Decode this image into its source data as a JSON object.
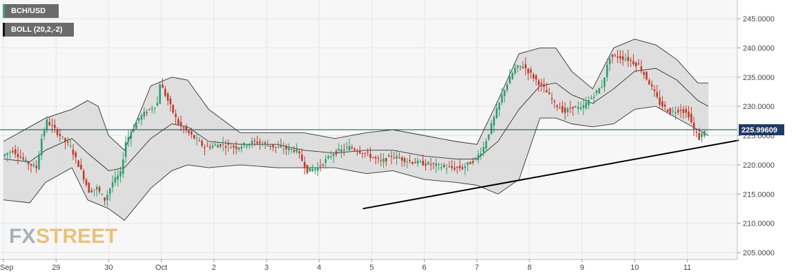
{
  "legend": {
    "symbol": "BCH/USD",
    "indicator": "BOLL (20,2,-2)"
  },
  "watermark": {
    "fx": "FX",
    "street": "STREET"
  },
  "colors": {
    "up": "#2e9e6e",
    "down": "#c0392b",
    "band_fill": "#d9d9d9",
    "band_line": "#333333",
    "price_line": "#1f3a63",
    "trendline": "#000000",
    "grid": "#e6e6e6"
  },
  "chart_data": {
    "type": "candlestick",
    "symbol": "BCH/USD",
    "indicator": "BOLL (20,2,-2)",
    "current_price": "225.99609",
    "ylim": [
      205,
      245
    ],
    "y_ticks": [
      "205.0000",
      "210.0000",
      "215.0000",
      "220.0000",
      "225.0000",
      "230.0000",
      "235.0000",
      "240.0000",
      "245.0000"
    ],
    "x_ticks": [
      "Sep",
      "29",
      "30",
      "Oct",
      "2",
      "3",
      "4",
      "5",
      "6",
      "7",
      "8",
      "9",
      "10",
      "11"
    ],
    "grid": true,
    "price_series": [
      [
        0,
        221.5
      ],
      [
        0.2,
        222.5
      ],
      [
        0.45,
        220.5
      ],
      [
        0.65,
        219.5
      ],
      [
        0.75,
        224.5
      ],
      [
        0.85,
        227.5
      ],
      [
        0.95,
        226.5
      ],
      [
        1.1,
        225.0
      ],
      [
        1.3,
        223.0
      ],
      [
        1.5,
        219.0
      ],
      [
        1.65,
        215.5
      ],
      [
        1.8,
        216.0
      ],
      [
        1.95,
        214.0
      ],
      [
        2.1,
        217.0
      ],
      [
        2.25,
        218.5
      ],
      [
        2.35,
        224.0
      ],
      [
        2.6,
        228.0
      ],
      [
        2.8,
        229.5
      ],
      [
        2.95,
        230.5
      ],
      [
        3.0,
        234.0
      ],
      [
        3.15,
        231.0
      ],
      [
        3.35,
        227.0
      ],
      [
        3.6,
        225.0
      ],
      [
        3.85,
        223.0
      ],
      [
        4.15,
        223.5
      ],
      [
        4.45,
        223.0
      ],
      [
        4.8,
        224.0
      ],
      [
        5.2,
        223.0
      ],
      [
        5.6,
        222.5
      ],
      [
        5.8,
        219.0
      ],
      [
        6.0,
        219.5
      ],
      [
        6.3,
        222.0
      ],
      [
        6.6,
        223.0
      ],
      [
        6.9,
        222.0
      ],
      [
        7.2,
        220.5
      ],
      [
        7.4,
        221.5
      ],
      [
        7.8,
        220.5
      ],
      [
        8.2,
        220.0
      ],
      [
        8.45,
        219.5
      ],
      [
        8.75,
        219.5
      ],
      [
        9.0,
        221.0
      ],
      [
        9.15,
        223.0
      ],
      [
        9.35,
        228.0
      ],
      [
        9.55,
        233.0
      ],
      [
        9.75,
        236.5
      ],
      [
        9.9,
        237.0
      ],
      [
        10.0,
        236.0
      ],
      [
        10.1,
        235.0
      ],
      [
        10.3,
        233.0
      ],
      [
        10.5,
        230.5
      ],
      [
        10.7,
        229.0
      ],
      [
        10.85,
        230.0
      ],
      [
        11.0,
        229.5
      ],
      [
        11.2,
        231.5
      ],
      [
        11.4,
        233.5
      ],
      [
        11.55,
        238.5
      ],
      [
        11.7,
        238.5
      ],
      [
        11.9,
        238.0
      ],
      [
        12.1,
        237.0
      ],
      [
        12.3,
        234.0
      ],
      [
        12.5,
        230.5
      ],
      [
        12.7,
        229.0
      ],
      [
        12.9,
        229.5
      ],
      [
        13.05,
        228.5
      ],
      [
        13.15,
        226.0
      ],
      [
        13.25,
        224.5
      ],
      [
        13.35,
        225.99609
      ]
    ],
    "bollinger_middle": [
      [
        0,
        221.0
      ],
      [
        0.5,
        220.5
      ],
      [
        0.8,
        222.5
      ],
      [
        1.3,
        224.5
      ],
      [
        1.6,
        222.0
      ],
      [
        2.0,
        219.0
      ],
      [
        2.3,
        219.5
      ],
      [
        2.8,
        224.5
      ],
      [
        3.2,
        227.0
      ],
      [
        3.5,
        226.5
      ],
      [
        3.9,
        224.0
      ],
      [
        4.5,
        223.5
      ],
      [
        5.2,
        223.5
      ],
      [
        5.7,
        222.5
      ],
      [
        6.3,
        222.0
      ],
      [
        6.9,
        222.5
      ],
      [
        7.4,
        222.5
      ],
      [
        8.0,
        221.5
      ],
      [
        8.6,
        221.0
      ],
      [
        9.0,
        221.0
      ],
      [
        9.4,
        224.0
      ],
      [
        9.8,
        229.5
      ],
      [
        10.2,
        233.5
      ],
      [
        10.5,
        234.0
      ],
      [
        10.8,
        232.0
      ],
      [
        11.2,
        230.5
      ],
      [
        11.6,
        233.0
      ],
      [
        12.0,
        236.0
      ],
      [
        12.4,
        236.5
      ],
      [
        12.8,
        234.5
      ],
      [
        13.2,
        231.0
      ],
      [
        13.4,
        230.0
      ]
    ],
    "bollinger_upper": [
      [
        0,
        224.0
      ],
      [
        0.5,
        226.5
      ],
      [
        0.8,
        228.0
      ],
      [
        1.3,
        229.5
      ],
      [
        1.6,
        231.0
      ],
      [
        1.8,
        230.0
      ],
      [
        2.0,
        225.0
      ],
      [
        2.3,
        222.5
      ],
      [
        2.8,
        233.5
      ],
      [
        3.2,
        235.0
      ],
      [
        3.5,
        234.5
      ],
      [
        3.9,
        229.5
      ],
      [
        4.5,
        225.5
      ],
      [
        5.2,
        225.5
      ],
      [
        5.7,
        225.5
      ],
      [
        6.3,
        224.5
      ],
      [
        6.9,
        225.5
      ],
      [
        7.4,
        226.0
      ],
      [
        8.0,
        225.0
      ],
      [
        8.6,
        224.0
      ],
      [
        9.0,
        223.5
      ],
      [
        9.4,
        231.0
      ],
      [
        9.8,
        239.0
      ],
      [
        10.2,
        240.0
      ],
      [
        10.5,
        240.0
      ],
      [
        10.8,
        236.0
      ],
      [
        11.2,
        233.0
      ],
      [
        11.6,
        240.0
      ],
      [
        12.0,
        241.5
      ],
      [
        12.4,
        240.5
      ],
      [
        12.8,
        238.0
      ],
      [
        13.2,
        234.0
      ],
      [
        13.4,
        234.0
      ]
    ],
    "bollinger_lower": [
      [
        0,
        214.0
      ],
      [
        0.5,
        213.5
      ],
      [
        0.8,
        217.0
      ],
      [
        1.3,
        219.5
      ],
      [
        1.6,
        214.0
      ],
      [
        2.0,
        212.5
      ],
      [
        2.3,
        210.5
      ],
      [
        2.8,
        216.0
      ],
      [
        3.2,
        219.0
      ],
      [
        3.5,
        220.0
      ],
      [
        3.9,
        219.5
      ],
      [
        4.5,
        220.0
      ],
      [
        5.2,
        219.5
      ],
      [
        5.7,
        219.5
      ],
      [
        6.3,
        219.5
      ],
      [
        6.9,
        218.5
      ],
      [
        7.4,
        219.0
      ],
      [
        8.0,
        217.5
      ],
      [
        8.6,
        217.0
      ],
      [
        9.0,
        216.5
      ],
      [
        9.4,
        215.0
      ],
      [
        9.8,
        217.5
      ],
      [
        10.2,
        228.0
      ],
      [
        10.5,
        228.0
      ],
      [
        10.8,
        227.0
      ],
      [
        11.2,
        226.5
      ],
      [
        11.6,
        227.0
      ],
      [
        12.0,
        229.5
      ],
      [
        12.4,
        230.0
      ],
      [
        12.8,
        228.0
      ],
      [
        13.2,
        226.0
      ],
      [
        13.4,
        225.0
      ]
    ],
    "trendline": [
      [
        6.83,
        212.5
      ],
      [
        13.98,
        224.2
      ]
    ]
  }
}
